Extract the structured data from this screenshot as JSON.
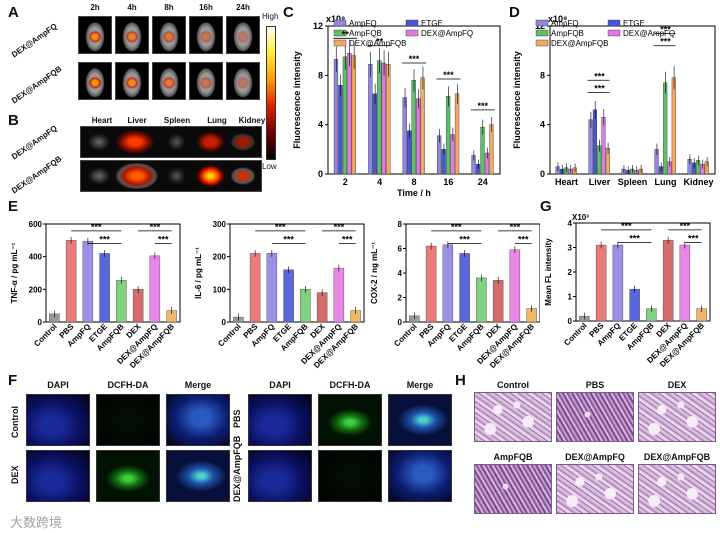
{
  "panels": {
    "A": "A",
    "B": "B",
    "C": "C",
    "D": "D",
    "E": "E",
    "F": "F",
    "G": "G",
    "H": "H"
  },
  "panelA": {
    "times": [
      "2h",
      "4h",
      "8h",
      "16h",
      "24h"
    ],
    "rows": [
      "DEX@AmpFQ",
      "DEX@AmpFQB"
    ],
    "colorbar_high": "High",
    "colorbar_low": "Low"
  },
  "panelB": {
    "organs": [
      "Heart",
      "Liver",
      "Spleen",
      "Lung",
      "Kidney"
    ],
    "rows": [
      "DEX@AmpFQ",
      "DEX@AmpFQB"
    ]
  },
  "panelC": {
    "exponent": "x10⁹",
    "legend": [
      "AmpFQ",
      "ETGE",
      "AmpFQB",
      "DEX@AmpFQ",
      "DEX@AmpFQB"
    ],
    "colors": [
      "#8f87e0",
      "#4a57d4",
      "#5fbf6a",
      "#e07be0",
      "#f2a766"
    ],
    "chart_data": {
      "type": "bar",
      "x": [
        "2",
        "4",
        "8",
        "16",
        "24"
      ],
      "xlabel": "Time / h",
      "ylabel": "Fluorescence intensity",
      "ylim": [
        0,
        12
      ],
      "yticks": [
        "0",
        "4",
        "8",
        "12"
      ],
      "series": [
        {
          "name": "AmpFQ",
          "values": [
            9.3,
            8.9,
            6.2,
            3.1,
            1.5
          ]
        },
        {
          "name": "ETGE",
          "values": [
            7.2,
            6.5,
            3.5,
            2.0,
            0.8
          ]
        },
        {
          "name": "AmpFQB",
          "values": [
            9.5,
            9.2,
            7.6,
            6.3,
            3.8
          ]
        },
        {
          "name": "DEX@AmpFQ",
          "values": [
            9.8,
            9.0,
            6.1,
            3.2,
            1.7
          ]
        },
        {
          "name": "DEX@AmpFQB",
          "values": [
            9.6,
            8.9,
            7.8,
            6.5,
            4.0
          ]
        }
      ],
      "sig_label": [
        "**",
        "**",
        "***",
        "***",
        "***"
      ]
    }
  },
  "panelD": {
    "exponent": "x10⁹",
    "legend": [
      "AmpFQ",
      "ETGE",
      "AmpFQB",
      "DEX@AmpFQ",
      "DEX@AmpFQB"
    ],
    "colors": [
      "#8f87e0",
      "#4a57d4",
      "#5fbf6a",
      "#e07be0",
      "#f2a766"
    ],
    "chart_data": {
      "type": "bar",
      "x": [
        "Heart",
        "Liver",
        "Spleen",
        "Lung",
        "Kidney"
      ],
      "ylabel": "Fluorescence intensity",
      "ylim": [
        0,
        12
      ],
      "yticks": [
        "0",
        "4",
        "8",
        "12"
      ],
      "series": [
        {
          "name": "AmpFQ",
          "values": [
            0.6,
            4.4,
            0.4,
            2.0,
            1.2
          ]
        },
        {
          "name": "ETGE",
          "values": [
            0.4,
            5.2,
            0.3,
            0.6,
            0.9
          ]
        },
        {
          "name": "AmpFQB",
          "values": [
            0.5,
            2.3,
            0.4,
            7.4,
            1.1
          ]
        },
        {
          "name": "DEX@AmpFQ",
          "values": [
            0.4,
            4.6,
            0.3,
            1.0,
            0.8
          ]
        },
        {
          "name": "DEX@AmpFQB",
          "values": [
            0.5,
            2.1,
            0.4,
            7.8,
            1.0
          ]
        }
      ]
    }
  },
  "panelE": {
    "categories": [
      "Control",
      "PBS",
      "AmpFQ",
      "ETGE",
      "AmpFQB",
      "DEX",
      "DEX@AmpFQ",
      "DEX@AmpFQB"
    ],
    "colors": [
      "#9a9a9a",
      "#e97b7b",
      "#9b90e6",
      "#5b68db",
      "#7fd07f",
      "#d46c6c",
      "#e987e9",
      "#f2b66a"
    ],
    "charts": [
      {
        "type": "bar",
        "ylabel": "TNF-α / pg mL⁻¹",
        "ylim": [
          0,
          600
        ],
        "yticks": [
          "0",
          "200",
          "400",
          "600"
        ],
        "values": [
          50,
          500,
          495,
          420,
          255,
          200,
          405,
          70
        ]
      },
      {
        "type": "bar",
        "ylabel": "IL-6 / pg mL⁻¹",
        "ylim": [
          0,
          300
        ],
        "yticks": [
          "0",
          "100",
          "200",
          "300"
        ],
        "values": [
          15,
          210,
          210,
          160,
          100,
          90,
          165,
          35
        ]
      },
      {
        "type": "bar",
        "ylabel": "COX-2 / ng mL⁻¹",
        "ylim": [
          0,
          8
        ],
        "yticks": [
          "0",
          "2",
          "4",
          "6",
          "8"
        ],
        "values": [
          0.5,
          6.2,
          6.3,
          5.6,
          3.6,
          3.4,
          5.9,
          1.1
        ]
      }
    ]
  },
  "panelG": {
    "exponent": "X10³",
    "categories": [
      "Control",
      "PBS",
      "AmpFQ",
      "ETGE",
      "AmpFQB",
      "DEX",
      "DEX@AmpFQ",
      "DEX@AmpFQB"
    ],
    "colors": [
      "#9a9a9a",
      "#e97b7b",
      "#9b90e6",
      "#5b68db",
      "#7fd07f",
      "#d46c6c",
      "#e987e9",
      "#f2b66a"
    ],
    "chart_data": {
      "type": "bar",
      "ylabel": "Mean FL intensity",
      "ylim": [
        0,
        4
      ],
      "yticks": [
        "0",
        "1",
        "2",
        "3",
        "4"
      ],
      "values": [
        0.2,
        3.1,
        3.1,
        1.3,
        0.5,
        3.3,
        3.1,
        0.5
      ]
    }
  },
  "sig": "***",
  "panelF": {
    "columns": [
      "DAPI",
      "DCFH-DA",
      "Merge"
    ],
    "left_rows": [
      "Control",
      "DEX"
    ],
    "right_rows": [
      "PBS",
      "DEX@AmpFQB"
    ]
  },
  "panelH": {
    "labels": [
      "Control",
      "PBS",
      "DEX",
      "AmpFQB",
      "DEX@AmpFQ",
      "DEX@AmpFQB"
    ]
  },
  "watermark": "大数跨境"
}
